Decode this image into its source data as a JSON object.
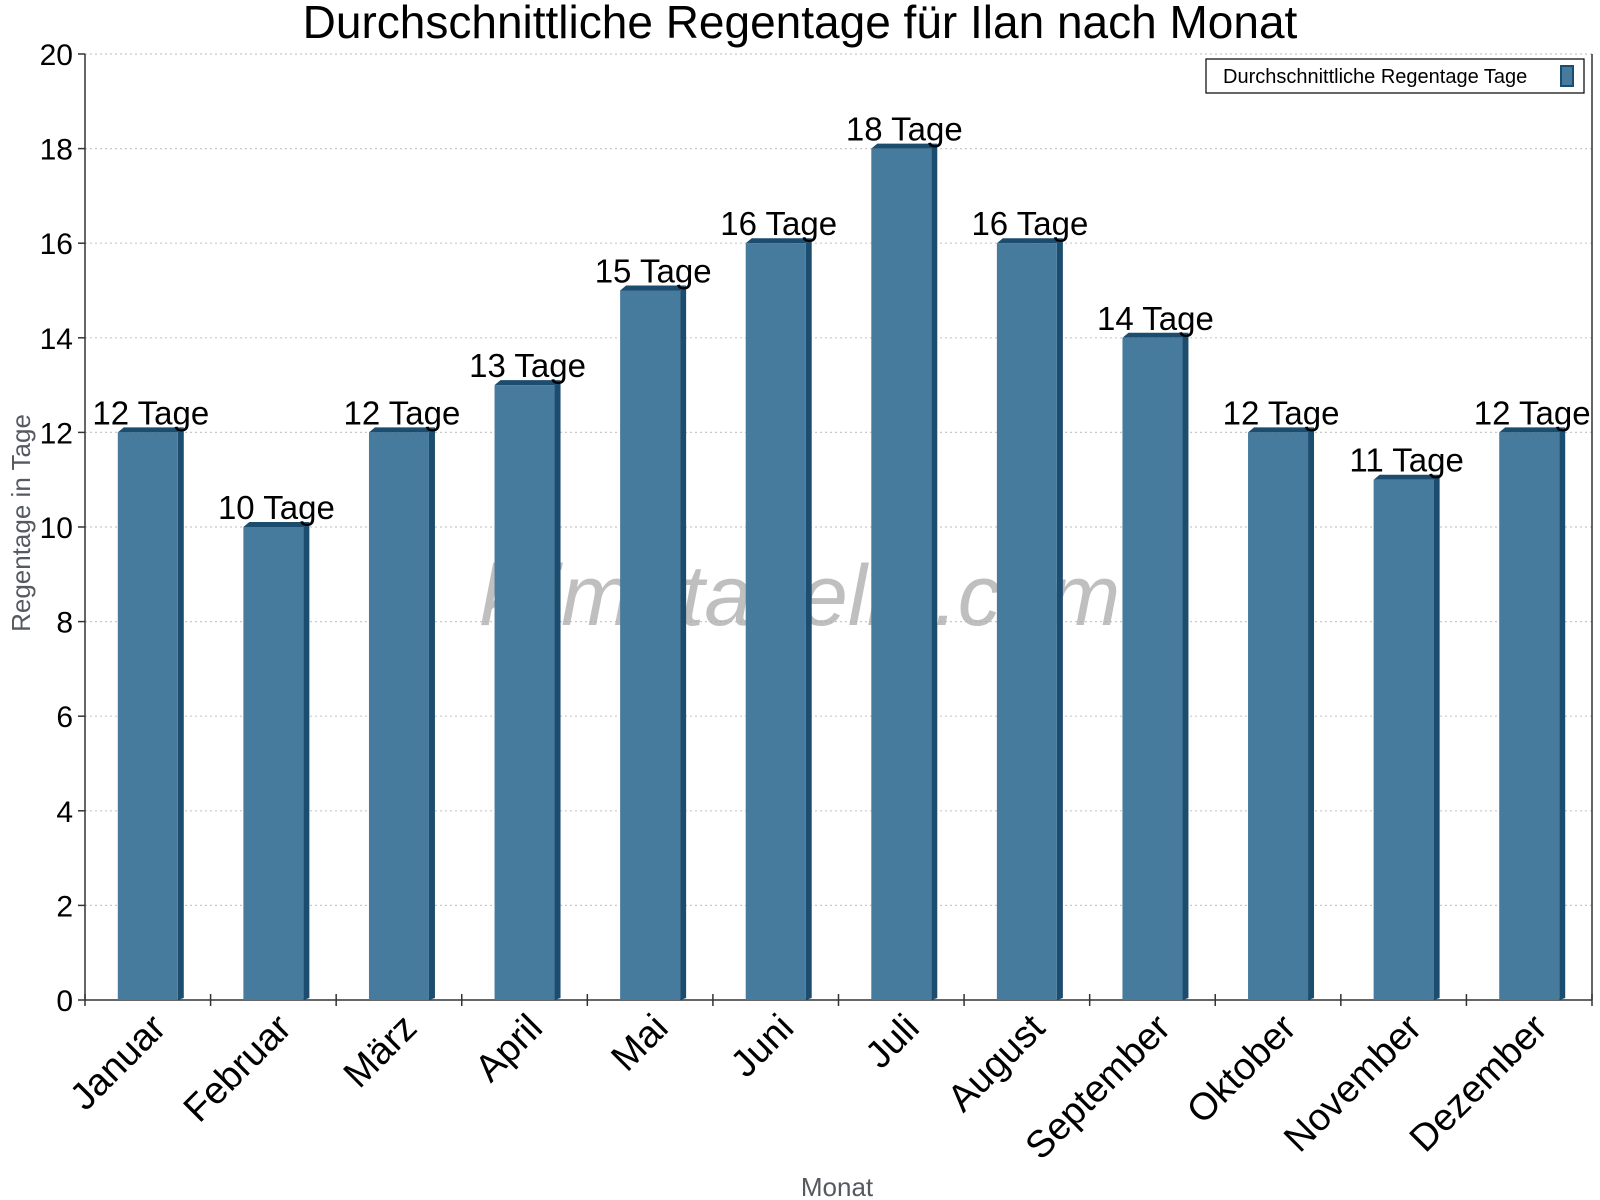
{
  "chart_data": {
    "type": "bar",
    "title": "Durchschnittliche Regentage für Ilan nach Monat",
    "xlabel": "Monat",
    "ylabel": "Regentage in Tage",
    "categories": [
      "Januar",
      "Februar",
      "März",
      "April",
      "Mai",
      "Juni",
      "Juli",
      "August",
      "September",
      "Oktober",
      "November",
      "Dezember"
    ],
    "series": [
      {
        "name": "Durchschnittliche Regentage Tage",
        "values": [
          12,
          10,
          12,
          13,
          15,
          16,
          18,
          16,
          14,
          12,
          11,
          12
        ],
        "labels": [
          "12 Tage",
          "10 Tage",
          "12 Tage",
          "13 Tage",
          "15 Tage",
          "16 Tage",
          "18 Tage",
          "16 Tage",
          "14 Tage",
          "12 Tage",
          "11 Tage",
          "12 Tage"
        ]
      }
    ],
    "ylim": [
      0,
      20
    ],
    "yticks": [
      0,
      2,
      4,
      6,
      8,
      10,
      12,
      14,
      16,
      18,
      20
    ],
    "grid": true,
    "legend_position": "top-right",
    "watermark": "klimatabelle.com",
    "colors": {
      "bar": "#467b9e",
      "bar_side": "#1d4d6e",
      "grid": "#c8c8c8",
      "axis": "#333333"
    }
  }
}
